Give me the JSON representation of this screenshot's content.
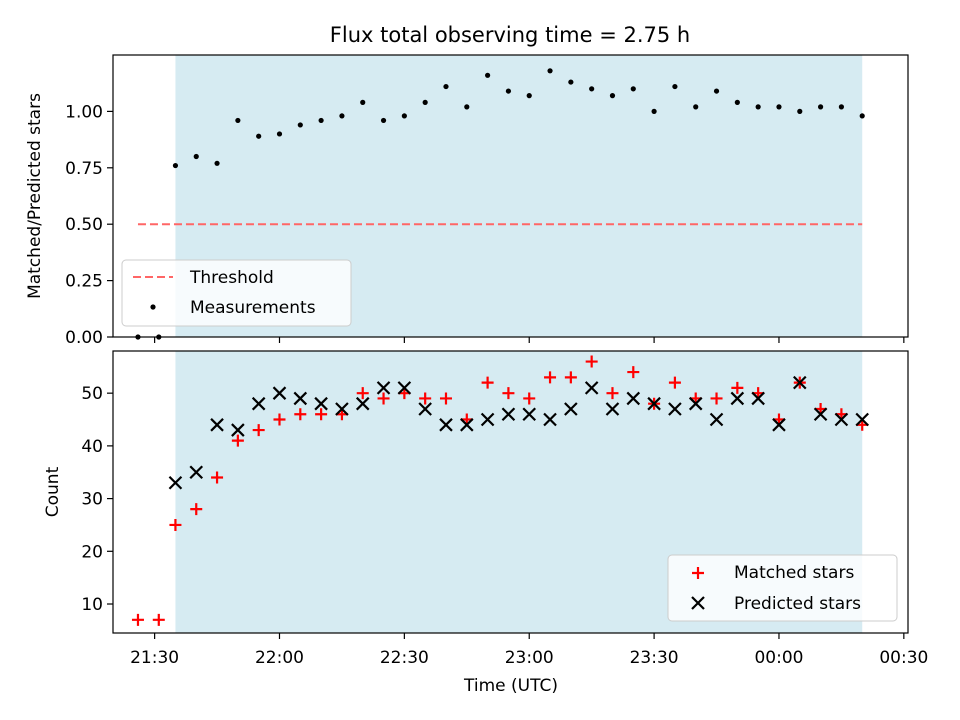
{
  "figure_title": "Flux total observing time = 2.75 h",
  "colors": {
    "shade": "#add8e6",
    "threshold": "#ff6666",
    "measurement": "#000000",
    "matched": "#ff0000",
    "predicted": "#000000"
  },
  "chart_data": [
    {
      "type": "scatter",
      "title": "Flux total observing time = 2.75 h",
      "xlabel": "",
      "ylabel": "Matched/Predicted stars",
      "ylim": [
        0,
        1.25
      ],
      "yticks": [
        0.0,
        0.25,
        0.5,
        0.75,
        1.0
      ],
      "ytick_labels": [
        "0.00",
        "0.25",
        "0.50",
        "0.75",
        "1.00"
      ],
      "xlim": [
        "21:20",
        "00:31"
      ],
      "shaded_span": [
        "21:35",
        "00:20"
      ],
      "threshold": {
        "name": "Threshold",
        "y": 0.5,
        "x_start": "21:26",
        "x_end": "00:20"
      },
      "legend": {
        "position": "lower-left",
        "entries": [
          "Threshold",
          "Measurements"
        ]
      },
      "series": [
        {
          "name": "Measurements",
          "x": [
            "21:26",
            "21:31",
            "21:35",
            "21:40",
            "21:45",
            "21:50",
            "21:55",
            "22:00",
            "22:05",
            "22:10",
            "22:15",
            "22:20",
            "22:25",
            "22:30",
            "22:35",
            "22:40",
            "22:45",
            "22:50",
            "22:55",
            "23:00",
            "23:05",
            "23:10",
            "23:15",
            "23:20",
            "23:25",
            "23:30",
            "23:35",
            "23:40",
            "23:45",
            "23:50",
            "23:55",
            "00:00",
            "00:05",
            "00:10",
            "00:15",
            "00:20"
          ],
          "y": [
            0.0,
            0.0,
            0.76,
            0.8,
            0.77,
            0.96,
            0.89,
            0.9,
            0.94,
            0.96,
            0.98,
            1.04,
            0.96,
            0.98,
            1.04,
            1.11,
            1.02,
            1.16,
            1.09,
            1.07,
            1.18,
            1.13,
            1.1,
            1.07,
            1.1,
            1.0,
            1.11,
            1.02,
            1.09,
            1.04,
            1.02,
            1.02,
            1.0,
            1.02,
            1.02,
            0.98
          ]
        }
      ]
    },
    {
      "type": "scatter",
      "xlabel": "Time (UTC)",
      "ylabel": "Count",
      "ylim": [
        4.5,
        58
      ],
      "yticks": [
        10,
        20,
        30,
        40,
        50
      ],
      "ytick_labels": [
        "10",
        "20",
        "30",
        "40",
        "50"
      ],
      "xlim": [
        "21:20",
        "00:31"
      ],
      "xticks": [
        "21:30",
        "22:00",
        "22:30",
        "23:00",
        "23:30",
        "00:00",
        "00:30"
      ],
      "shaded_span": [
        "21:35",
        "00:20"
      ],
      "legend": {
        "position": "lower-right",
        "entries": [
          "Matched stars",
          "Predicted stars"
        ]
      },
      "series": [
        {
          "name": "Matched stars",
          "marker": "plus",
          "x": [
            "21:26",
            "21:31",
            "21:35",
            "21:40",
            "21:45",
            "21:50",
            "21:55",
            "22:00",
            "22:05",
            "22:10",
            "22:15",
            "22:20",
            "22:25",
            "22:30",
            "22:35",
            "22:40",
            "22:45",
            "22:50",
            "22:55",
            "23:00",
            "23:05",
            "23:10",
            "23:15",
            "23:20",
            "23:25",
            "23:30",
            "23:35",
            "23:40",
            "23:45",
            "23:50",
            "23:55",
            "00:00",
            "00:05",
            "00:10",
            "00:15",
            "00:20"
          ],
          "y": [
            7,
            7,
            25,
            28,
            34,
            41,
            43,
            45,
            46,
            46,
            46,
            50,
            49,
            50,
            49,
            49,
            45,
            52,
            50,
            49,
            53,
            53,
            56,
            50,
            54,
            48,
            52,
            49,
            49,
            51,
            50,
            45,
            52,
            47,
            46,
            44
          ]
        },
        {
          "name": "Predicted stars",
          "marker": "x",
          "x": [
            "21:35",
            "21:40",
            "21:45",
            "21:50",
            "21:55",
            "22:00",
            "22:05",
            "22:10",
            "22:15",
            "22:20",
            "22:25",
            "22:30",
            "22:35",
            "22:40",
            "22:45",
            "22:50",
            "22:55",
            "23:00",
            "23:05",
            "23:10",
            "23:15",
            "23:20",
            "23:25",
            "23:30",
            "23:35",
            "23:40",
            "23:45",
            "23:50",
            "23:55",
            "00:00",
            "00:05",
            "00:10",
            "00:15",
            "00:20"
          ],
          "y": [
            33,
            35,
            44,
            43,
            48,
            50,
            49,
            48,
            47,
            48,
            51,
            51,
            47,
            44,
            44,
            45,
            46,
            46,
            45,
            47,
            51,
            47,
            49,
            48,
            47,
            48,
            45,
            49,
            49,
            44,
            52,
            46,
            45,
            45
          ]
        }
      ]
    }
  ]
}
